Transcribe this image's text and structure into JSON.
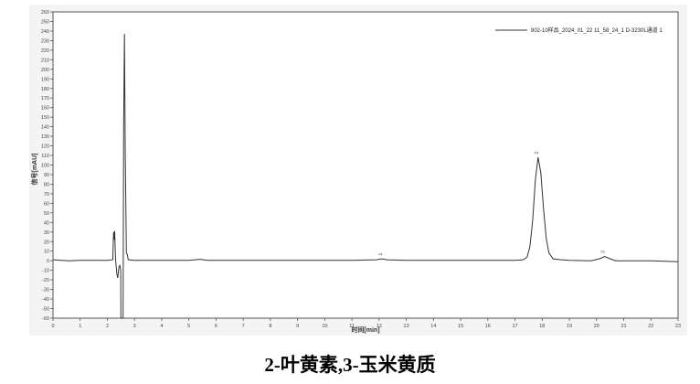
{
  "chart_data": {
    "type": "line",
    "title": "",
    "xlabel": "时间[min]",
    "ylabel": "信号[mAU]",
    "xlim": [
      0,
      23
    ],
    "ylim": [
      -60,
      260
    ],
    "xticks": [
      0,
      1,
      2,
      3,
      4,
      5,
      6,
      7,
      8,
      9,
      10,
      11,
      12,
      13,
      14,
      15,
      16,
      17,
      18,
      19,
      20,
      21,
      22,
      23
    ],
    "yticks": [
      -60,
      -50,
      -40,
      -30,
      -20,
      -10,
      0,
      10,
      20,
      30,
      40,
      50,
      60,
      70,
      80,
      90,
      100,
      110,
      120,
      130,
      140,
      150,
      160,
      170,
      180,
      190,
      200,
      210,
      220,
      230,
      240,
      250,
      260
    ],
    "grid": false,
    "legend_position": "top-right",
    "series": [
      {
        "name": "802-10样品_2024_01_22 11_58_24_1 D-3230L通道 1",
        "color": "#333333",
        "points": [
          [
            0,
            1
          ],
          [
            0.3,
            0.5
          ],
          [
            0.6,
            0
          ],
          [
            1,
            0.5
          ],
          [
            1.5,
            0.5
          ],
          [
            2,
            0.5
          ],
          [
            2.2,
            1
          ],
          [
            2.23,
            30
          ],
          [
            2.25,
            22
          ],
          [
            2.27,
            31
          ],
          [
            2.3,
            2
          ],
          [
            2.35,
            -14
          ],
          [
            2.38,
            -18
          ],
          [
            2.43,
            -6
          ],
          [
            2.46,
            -5
          ],
          [
            2.49,
            -10
          ],
          [
            2.5,
            -60
          ],
          [
            2.58,
            -60
          ],
          [
            2.6,
            140
          ],
          [
            2.63,
            237
          ],
          [
            2.66,
            110
          ],
          [
            2.7,
            8
          ],
          [
            2.73,
            7
          ],
          [
            2.77,
            1
          ],
          [
            3,
            0.5
          ],
          [
            4,
            0.5
          ],
          [
            5,
            0.5
          ],
          [
            5.4,
            1.5
          ],
          [
            5.7,
            0.5
          ],
          [
            7,
            0.5
          ],
          [
            9,
            0.5
          ],
          [
            11,
            0.5
          ],
          [
            11.9,
            1
          ],
          [
            12.1,
            2
          ],
          [
            12.3,
            1
          ],
          [
            13,
            0.5
          ],
          [
            15,
            0.5
          ],
          [
            16,
            0.5
          ],
          [
            17,
            0.5
          ],
          [
            17.3,
            1
          ],
          [
            17.45,
            4
          ],
          [
            17.55,
            15
          ],
          [
            17.65,
            42
          ],
          [
            17.75,
            85
          ],
          [
            17.85,
            108
          ],
          [
            17.95,
            92
          ],
          [
            18.05,
            54
          ],
          [
            18.15,
            23
          ],
          [
            18.25,
            8
          ],
          [
            18.4,
            2
          ],
          [
            18.7,
            1
          ],
          [
            19,
            0.5
          ],
          [
            19.8,
            0
          ],
          [
            20.1,
            2
          ],
          [
            20.3,
            4.5
          ],
          [
            20.5,
            2
          ],
          [
            20.7,
            0
          ],
          [
            21,
            0
          ],
          [
            22,
            0
          ],
          [
            23,
            -1
          ]
        ]
      }
    ],
    "annotations": [
      {
        "label": "1",
        "x": 12.1,
        "y": 2
      },
      {
        "label": "2",
        "x": 17.85,
        "y": 108
      },
      {
        "label": "3",
        "x": 20.3,
        "y": 4.5
      }
    ]
  },
  "caption": "2-叶黄素,3-玉米黄质"
}
